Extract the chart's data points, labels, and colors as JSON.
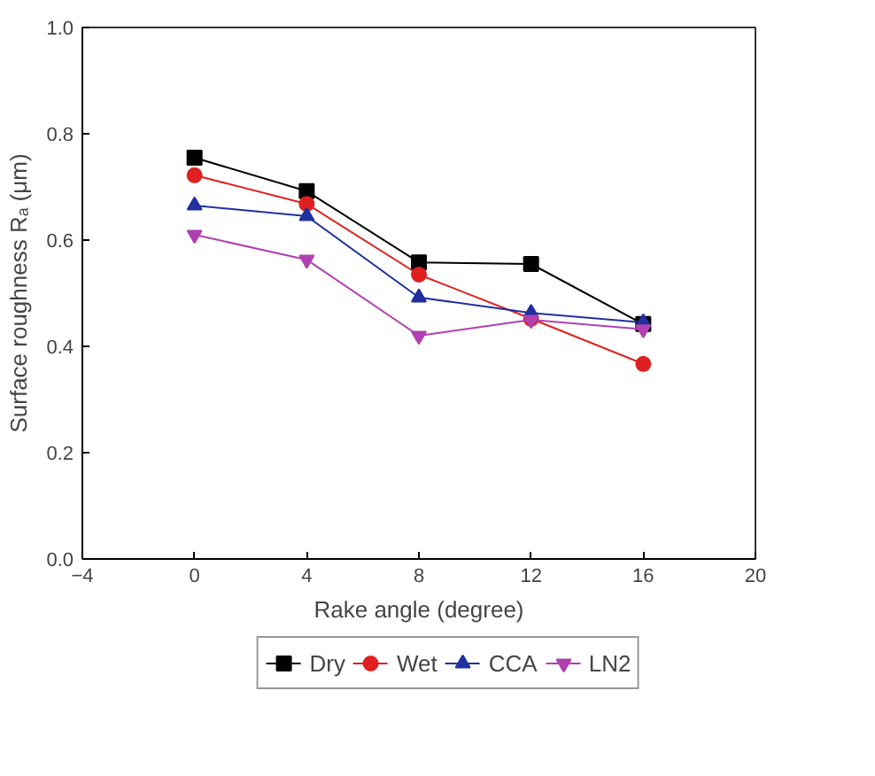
{
  "chart_data": {
    "type": "line",
    "xlabel": "Rake angle (degree)",
    "ylabel": "Surface roughness Rₐ (μm)",
    "x": [
      0,
      4,
      8,
      12,
      16
    ],
    "series": [
      {
        "name": "Dry",
        "color": "#000000",
        "marker": "square",
        "values": [
          0.755,
          0.692,
          0.558,
          0.555,
          0.442
        ]
      },
      {
        "name": "Wet",
        "color": "#e02020",
        "marker": "circle",
        "values": [
          0.722,
          0.668,
          0.535,
          0.452,
          0.367
        ]
      },
      {
        "name": "CCA",
        "color": "#2030a0",
        "marker": "triangle",
        "values": [
          0.665,
          0.645,
          0.492,
          0.463,
          0.445
        ]
      },
      {
        "name": "LN2",
        "color": "#b040b0",
        "marker": "triangle",
        "values": [
          0.61,
          0.563,
          0.42,
          0.45,
          0.432
        ]
      }
    ],
    "xlim": [
      -4,
      20
    ],
    "xticks": [
      -4,
      0,
      4,
      8,
      12,
      16,
      20
    ],
    "ylim": [
      0,
      1
    ],
    "yticks": [
      {
        "value": 0,
        "label": "0.0"
      },
      {
        "value": 0.2,
        "label": "0.2"
      },
      {
        "value": 0.4,
        "label": "0.4"
      },
      {
        "value": 0.6,
        "label": "0.6"
      },
      {
        "value": 0.8,
        "label": "0.8"
      },
      {
        "value": 1,
        "label": "1.0"
      }
    ],
    "legend": "bottom",
    "grid": false
  }
}
